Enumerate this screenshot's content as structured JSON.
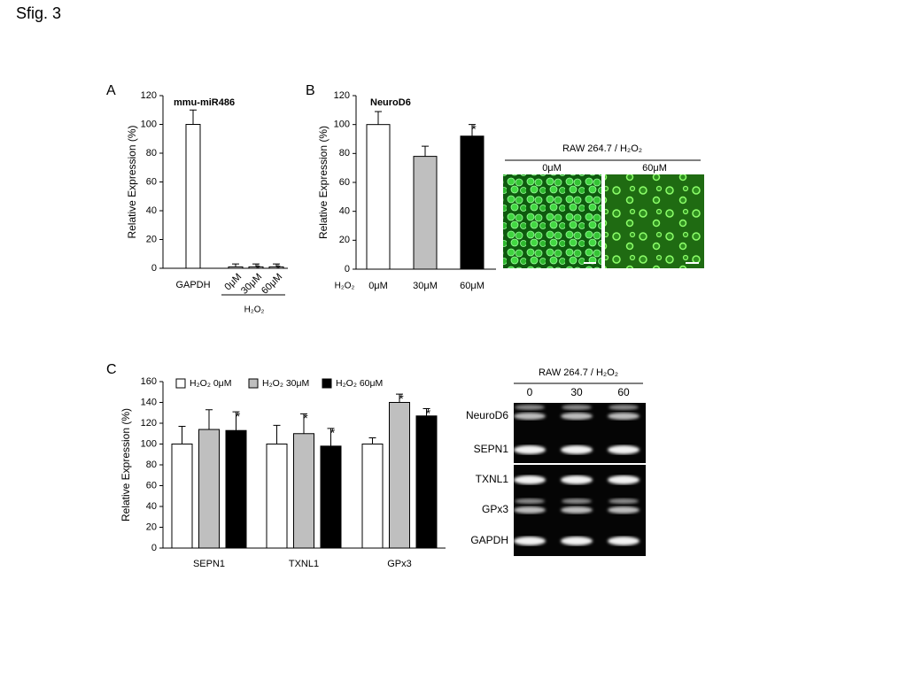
{
  "title": "Sfig. 3",
  "panels": [
    "A",
    "B",
    "C"
  ],
  "chart_data": [
    {
      "type": "bar",
      "title": "mmu-miR486",
      "ylabel": "Relative Expression (%)",
      "categories": [
        "GAPDH",
        "0μM",
        "30μM",
        "60μM"
      ],
      "xlabel": "H₂O₂",
      "values": [
        100,
        1,
        1,
        1
      ],
      "errors": [
        10,
        2,
        2,
        2
      ],
      "colors": [
        "#ffffff",
        "#ffffff",
        "#ffffff",
        "#ffffff"
      ],
      "significance": [
        null,
        null,
        "*",
        "*"
      ],
      "ylim": [
        0,
        120
      ],
      "yticks": [
        0,
        20,
        40,
        60,
        80,
        100,
        120
      ]
    },
    {
      "type": "bar",
      "title": "NeuroD6",
      "ylabel": "Relative Expression (%)",
      "categories": [
        "0μM",
        "30μM",
        "60μM"
      ],
      "xlabel": "H₂O₂",
      "values": [
        100,
        78,
        92
      ],
      "errors": [
        9,
        7,
        8
      ],
      "colors": [
        "#ffffff",
        "#bfbfbf",
        "#000000"
      ],
      "significance": [
        null,
        null,
        "*"
      ],
      "ylim": [
        0,
        120
      ],
      "yticks": [
        0,
        20,
        40,
        60,
        80,
        100,
        120
      ]
    },
    {
      "type": "bar",
      "ylabel": "Relative Expression (%)",
      "categories": [
        "SEPN1",
        "TXNL1",
        "GPx3"
      ],
      "series": [
        {
          "name": "H₂O₂ 0μM",
          "color": "#ffffff",
          "values": [
            100,
            100,
            100
          ],
          "errors": [
            17,
            18,
            6
          ],
          "significance": [
            null,
            null,
            null
          ]
        },
        {
          "name": "H₂O₂ 30μM",
          "color": "#bfbfbf",
          "values": [
            114,
            110,
            140
          ],
          "errors": [
            19,
            19,
            8
          ],
          "significance": [
            null,
            "*",
            "*"
          ]
        },
        {
          "name": "H₂O₂ 60μM",
          "color": "#000000",
          "values": [
            113,
            98,
            127
          ],
          "errors": [
            18,
            17,
            7
          ],
          "significance": [
            "*",
            "*",
            "*"
          ]
        }
      ],
      "ylim": [
        0,
        160
      ],
      "yticks": [
        0,
        20,
        40,
        60,
        80,
        100,
        120,
        140,
        160
      ]
    }
  ],
  "micrograph": {
    "title": "RAW 264.7 / H₂O₂",
    "panels": [
      "0μM",
      "60μM"
    ]
  },
  "gel": {
    "title": "RAW 264.7 / H₂O₂",
    "lanes": [
      "0",
      "30",
      "60"
    ],
    "rows": [
      "NeuroD6",
      "SEPN1",
      "TXNL1",
      "GPx3",
      "GAPDH"
    ]
  }
}
